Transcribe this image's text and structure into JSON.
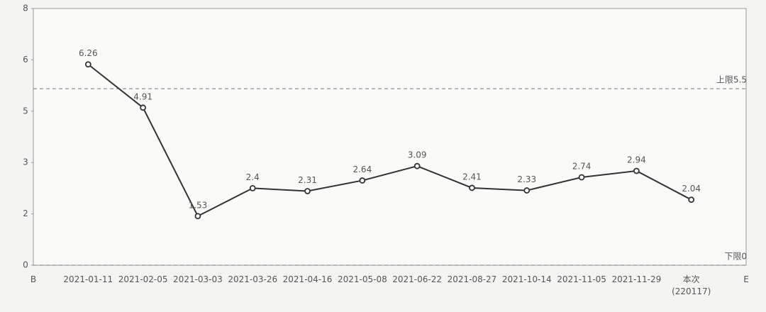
{
  "chart_data": {
    "type": "line",
    "categories": [
      "B",
      "2021-01-11",
      "2021-02-05",
      "2021-03-03",
      "2021-03-26",
      "2021-04-16",
      "2021-05-08",
      "2021-06-22",
      "2021-08-27",
      "2021-10-14",
      "2021-11-05",
      "2021-11-29",
      "本次\n(220117)",
      "E"
    ],
    "values": [
      null,
      6.26,
      4.91,
      1.53,
      2.4,
      2.31,
      2.64,
      3.09,
      2.41,
      2.33,
      2.74,
      2.94,
      2.04,
      null
    ],
    "color": "#333333",
    "ylim": [
      0,
      8
    ],
    "yticks": [
      0,
      {
        "value": 1.6,
        "label": "2"
      },
      {
        "value": 3.2,
        "label": "3"
      },
      {
        "value": 4.8,
        "label": "5"
      },
      {
        "value": 6.4,
        "label": "6"
      },
      8
    ],
    "reference_lines": [
      {
        "label": "上限5.5",
        "value": 5.5
      },
      {
        "label": "下限0",
        "value": 0
      }
    ]
  }
}
